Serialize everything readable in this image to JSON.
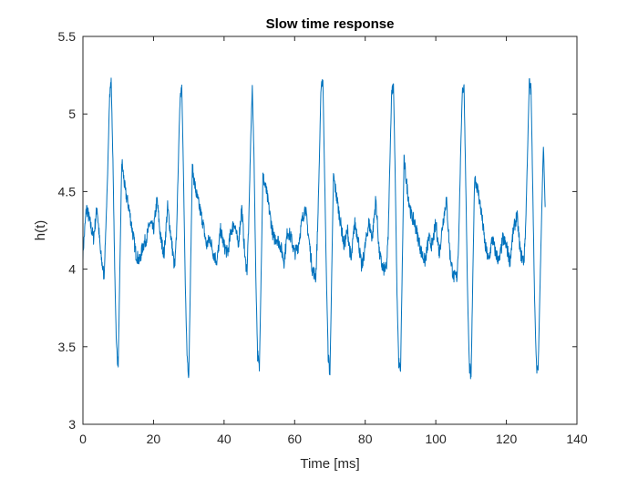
{
  "chart_data": {
    "type": "line",
    "title": "Slow time response",
    "xlabel": "Time [ms]",
    "ylabel": "h(t)",
    "xlim": [
      0,
      140
    ],
    "ylim": [
      3,
      5.5
    ],
    "xticks": [
      "0",
      "20",
      "40",
      "60",
      "80",
      "100",
      "120",
      "140"
    ],
    "yticks": [
      "3",
      "3.5",
      "4",
      "4.5",
      "5",
      "5.5"
    ],
    "grid": false,
    "series": [
      {
        "color": "#0072BD",
        "x": [
          0,
          1,
          2,
          3,
          4,
          5,
          6,
          7,
          7.5,
          8,
          8.5,
          9,
          9.5,
          10,
          11,
          12,
          13,
          14,
          15,
          16,
          17,
          18,
          19,
          20,
          21,
          22,
          23,
          24,
          25,
          26,
          26.5,
          27,
          27.5,
          28,
          28.5,
          29,
          29.5,
          30,
          31,
          32,
          33,
          34,
          35,
          36,
          37,
          38,
          39,
          40,
          41,
          42,
          43,
          44,
          45,
          46,
          46.5,
          47,
          47.5,
          48,
          48.5,
          49,
          49.5,
          50,
          51,
          52,
          53,
          54,
          55,
          56,
          57,
          58,
          59,
          60,
          61,
          62,
          63,
          64,
          65,
          66,
          66.5,
          67,
          67.5,
          68,
          68.5,
          69,
          69.5,
          70,
          71,
          72,
          73,
          74,
          75,
          76,
          77,
          78,
          79,
          80,
          81,
          82,
          83,
          84,
          85,
          86,
          86.5,
          87,
          87.5,
          88,
          88.5,
          89,
          89.5,
          90,
          91,
          92,
          93,
          94,
          95,
          96,
          97,
          98,
          99,
          100,
          101,
          102,
          103,
          104,
          105,
          106,
          106.5,
          107,
          107.5,
          108,
          108.5,
          109,
          109.5,
          110,
          111,
          112,
          113,
          114,
          115,
          116,
          117,
          118,
          119,
          120,
          121,
          122,
          123,
          124,
          125,
          125.5,
          126,
          126.5,
          127,
          127.5,
          128,
          128.5,
          129,
          130,
          130.5,
          131
        ],
        "y": [
          4.1,
          4.4,
          4.3,
          4.2,
          4.4,
          4.1,
          3.95,
          4.6,
          5.1,
          5.22,
          4.7,
          4.0,
          3.5,
          3.38,
          4.7,
          4.5,
          4.4,
          4.25,
          4.1,
          4.05,
          4.15,
          4.2,
          4.3,
          4.25,
          4.45,
          4.2,
          4.1,
          4.4,
          4.2,
          4.0,
          4.2,
          4.65,
          5.1,
          5.2,
          4.6,
          3.9,
          3.45,
          3.32,
          4.65,
          4.5,
          4.4,
          4.3,
          4.15,
          4.2,
          4.1,
          4.05,
          4.25,
          4.15,
          4.1,
          4.25,
          4.3,
          4.15,
          4.4,
          4.05,
          4.0,
          4.3,
          4.8,
          5.18,
          4.7,
          3.95,
          3.45,
          3.35,
          4.6,
          4.5,
          4.35,
          4.2,
          4.2,
          4.15,
          4.05,
          4.25,
          4.2,
          4.1,
          4.15,
          4.3,
          4.4,
          4.2,
          4.0,
          3.95,
          4.25,
          4.7,
          5.2,
          5.22,
          4.6,
          3.95,
          3.45,
          3.32,
          4.6,
          4.45,
          4.3,
          4.15,
          4.25,
          4.05,
          4.3,
          4.2,
          4.0,
          4.15,
          4.3,
          4.2,
          4.45,
          4.1,
          4.0,
          4.0,
          4.2,
          4.7,
          5.15,
          5.2,
          4.6,
          3.85,
          3.4,
          3.33,
          4.7,
          4.5,
          4.35,
          4.3,
          4.2,
          4.1,
          4.05,
          4.2,
          4.15,
          4.3,
          4.1,
          4.3,
          4.45,
          4.1,
          3.95,
          3.95,
          4.2,
          4.7,
          5.15,
          5.18,
          4.55,
          3.85,
          3.38,
          3.3,
          4.6,
          4.5,
          4.35,
          4.15,
          4.05,
          4.2,
          4.1,
          4.05,
          4.2,
          4.15,
          4.05,
          4.25,
          4.35,
          4.1,
          4.05,
          4.3,
          4.75,
          5.2,
          5.15,
          4.5,
          3.8,
          3.38,
          3.35,
          4.35,
          4.8,
          4.4
        ]
      }
    ]
  }
}
